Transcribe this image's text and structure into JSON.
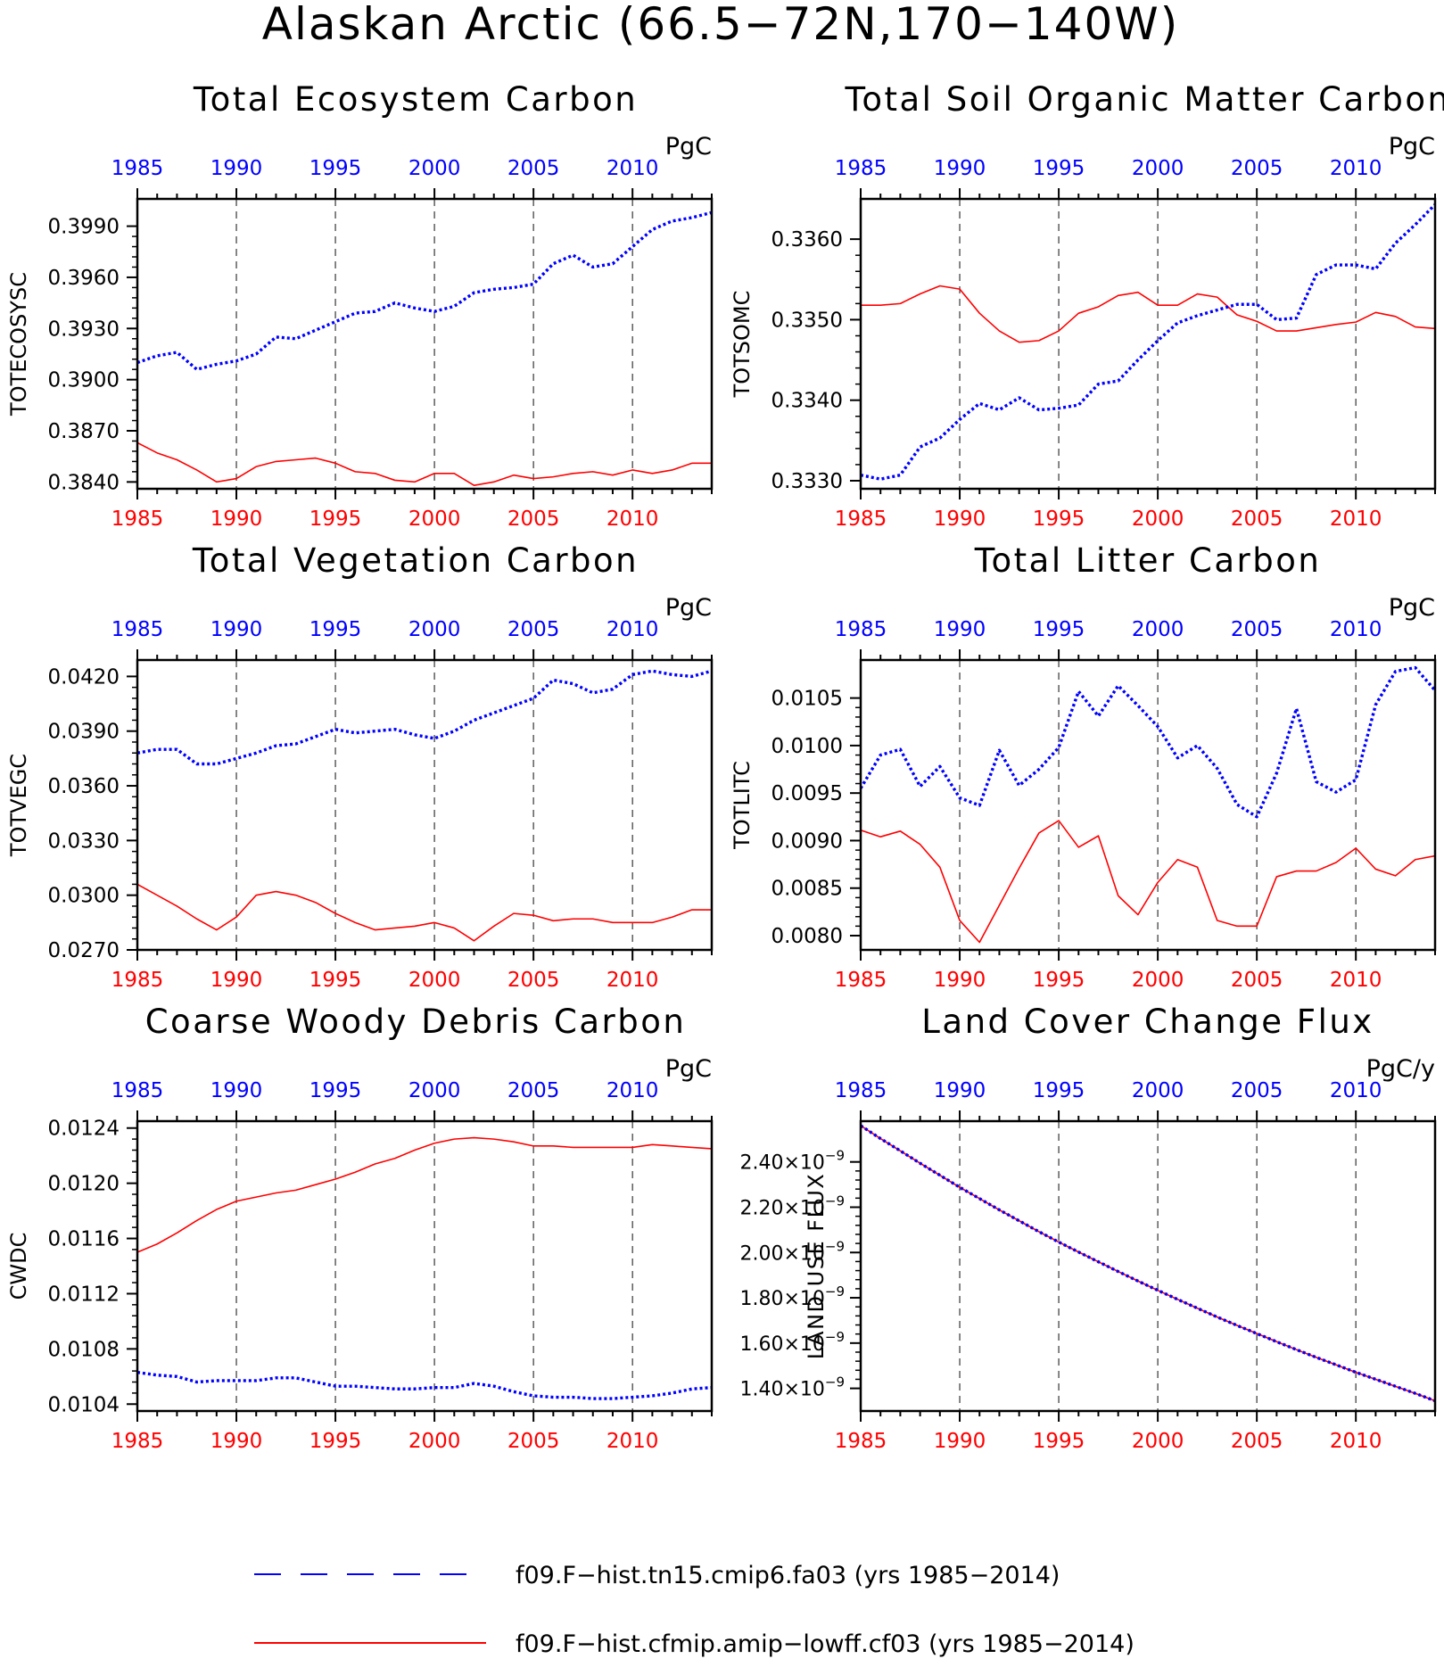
{
  "title": "Alaskan Arctic (66.5−72N,170−140W)",
  "colors": {
    "case_a": "#0000ff",
    "case_b": "#ff0000",
    "axis": "#000000",
    "grid": "#444444"
  },
  "legend": [
    {
      "label": "f09.F−hist.tn15.cmip6.fa03 (yrs 1985−2014)",
      "color": "#0000ff",
      "style": "dashed"
    },
    {
      "label": "f09.F−hist.cfmip.amip−lowff.cf03 (yrs 1985−2014)",
      "color": "#ff0000",
      "style": "solid"
    }
  ],
  "chart_data": [
    {
      "type": "line",
      "title": "Total Ecosystem Carbon",
      "ylabel": "TOTECOSYSC",
      "units": "PgC",
      "xlim": [
        1985,
        2014
      ],
      "ylim": [
        0.3836,
        0.4006
      ],
      "yticks": [
        "0.3840",
        "0.3870",
        "0.3900",
        "0.3930",
        "0.3960",
        "0.3990"
      ],
      "ytick_values": [
        0.384,
        0.387,
        0.39,
        0.393,
        0.396,
        0.399
      ],
      "xticks": [
        "1985",
        "1990",
        "1995",
        "2000",
        "2005",
        "2010"
      ],
      "x": [
        1985,
        1986,
        1987,
        1988,
        1989,
        1990,
        1991,
        1992,
        1993,
        1994,
        1995,
        1996,
        1997,
        1998,
        1999,
        2000,
        2001,
        2002,
        2003,
        2004,
        2005,
        2006,
        2007,
        2008,
        2009,
        2010,
        2011,
        2012,
        2013,
        2014
      ],
      "series": [
        {
          "values": [
            0.391,
            0.3914,
            0.3916,
            0.3906,
            0.3909,
            0.3911,
            0.3915,
            0.3925,
            0.3924,
            0.3929,
            0.3934,
            0.3939,
            0.394,
            0.3945,
            0.3942,
            0.394,
            0.3943,
            0.3951,
            0.3953,
            0.3954,
            0.3956,
            0.3968,
            0.3973,
            0.3966,
            0.3968,
            0.3978,
            0.3988,
            0.3993,
            0.3995,
            0.3998
          ]
        },
        {
          "values": [
            0.3863,
            0.3857,
            0.3853,
            0.3847,
            0.384,
            0.3842,
            0.3849,
            0.3852,
            0.3853,
            0.3854,
            0.3851,
            0.3846,
            0.3845,
            0.3841,
            0.384,
            0.3845,
            0.3845,
            0.3838,
            0.384,
            0.3844,
            0.3842,
            0.3843,
            0.3845,
            0.3846,
            0.3844,
            0.3847,
            0.3845,
            0.3847,
            0.3851,
            0.3851
          ]
        }
      ]
    },
    {
      "type": "line",
      "title": "Total Soil Organic Matter Carbon",
      "ylabel": "TOTSOMC",
      "units": "PgC",
      "xlim": [
        1985,
        2014
      ],
      "ylim": [
        0.3329,
        0.3365
      ],
      "yticks": [
        "0.3330",
        "0.3340",
        "0.3350",
        "0.3360"
      ],
      "ytick_values": [
        0.333,
        0.334,
        0.335,
        0.336
      ],
      "xticks": [
        "1985",
        "1990",
        "1995",
        "2000",
        "2005",
        "2010"
      ],
      "x": [
        1985,
        1986,
        1987,
        1988,
        1989,
        1990,
        1991,
        1992,
        1993,
        1994,
        1995,
        1996,
        1997,
        1998,
        1999,
        2000,
        2001,
        2002,
        2003,
        2004,
        2005,
        2006,
        2007,
        2008,
        2009,
        2010,
        2011,
        2012,
        2013,
        2014
      ],
      "series": [
        {
          "values": [
            0.33307,
            0.33302,
            0.33307,
            0.33342,
            0.33353,
            0.33376,
            0.33396,
            0.33388,
            0.33403,
            0.33388,
            0.3339,
            0.33394,
            0.3342,
            0.33424,
            0.3345,
            0.33474,
            0.33496,
            0.33505,
            0.33512,
            0.33519,
            0.33519,
            0.335,
            0.33502,
            0.33556,
            0.33568,
            0.33568,
            0.33563,
            0.33595,
            0.33618,
            0.33643
          ]
        },
        {
          "values": [
            0.33518,
            0.33518,
            0.3352,
            0.33532,
            0.33542,
            0.33538,
            0.33508,
            0.33486,
            0.33472,
            0.33474,
            0.33486,
            0.33508,
            0.33516,
            0.3353,
            0.33534,
            0.33518,
            0.33518,
            0.33532,
            0.33528,
            0.33506,
            0.33498,
            0.33486,
            0.33486,
            0.3349,
            0.33494,
            0.33497,
            0.33509,
            0.33504,
            0.33491,
            0.33489
          ]
        }
      ]
    },
    {
      "type": "line",
      "title": "Total Vegetation Carbon",
      "ylabel": "TOTVEGC",
      "units": "PgC",
      "xlim": [
        1985,
        2014
      ],
      "ylim": [
        0.027,
        0.0429
      ],
      "yticks": [
        "0.0270",
        "0.0300",
        "0.0330",
        "0.0360",
        "0.0390",
        "0.0420"
      ],
      "ytick_values": [
        0.027,
        0.03,
        0.033,
        0.036,
        0.039,
        0.042
      ],
      "xticks": [
        "1985",
        "1990",
        "1995",
        "2000",
        "2005",
        "2010"
      ],
      "x": [
        1985,
        1986,
        1987,
        1988,
        1989,
        1990,
        1991,
        1992,
        1993,
        1994,
        1995,
        1996,
        1997,
        1998,
        1999,
        2000,
        2001,
        2002,
        2003,
        2004,
        2005,
        2006,
        2007,
        2008,
        2009,
        2010,
        2011,
        2012,
        2013,
        2014
      ],
      "series": [
        {
          "values": [
            0.0378,
            0.038,
            0.038,
            0.0372,
            0.0372,
            0.0375,
            0.0378,
            0.0382,
            0.0383,
            0.0387,
            0.0391,
            0.0389,
            0.039,
            0.0391,
            0.0388,
            0.0386,
            0.039,
            0.0396,
            0.04,
            0.0404,
            0.0408,
            0.0418,
            0.0416,
            0.0411,
            0.0413,
            0.0421,
            0.0423,
            0.0421,
            0.042,
            0.0423
          ]
        },
        {
          "values": [
            0.0306,
            0.03,
            0.0294,
            0.0287,
            0.0281,
            0.0288,
            0.03,
            0.0302,
            0.03,
            0.0296,
            0.029,
            0.0285,
            0.0281,
            0.0282,
            0.0283,
            0.0285,
            0.0282,
            0.0275,
            0.0283,
            0.029,
            0.0289,
            0.0286,
            0.0287,
            0.0287,
            0.0285,
            0.0285,
            0.0285,
            0.0288,
            0.0292,
            0.0292
          ]
        }
      ]
    },
    {
      "type": "line",
      "title": "Total Litter Carbon",
      "ylabel": "TOTLITC",
      "units": "PgC",
      "xlim": [
        1985,
        2014
      ],
      "ylim": [
        0.00785,
        0.0109
      ],
      "yticks": [
        "0.0080",
        "0.0085",
        "0.0090",
        "0.0095",
        "0.0100",
        "0.0105"
      ],
      "ytick_values": [
        0.008,
        0.0085,
        0.009,
        0.0095,
        0.01,
        0.0105
      ],
      "xticks": [
        "1985",
        "1990",
        "1995",
        "2000",
        "2005",
        "2010"
      ],
      "x": [
        1985,
        1986,
        1987,
        1988,
        1989,
        1990,
        1991,
        1992,
        1993,
        1994,
        1995,
        1996,
        1997,
        1998,
        1999,
        2000,
        2001,
        2002,
        2003,
        2004,
        2005,
        2006,
        2007,
        2008,
        2009,
        2010,
        2011,
        2012,
        2013,
        2014
      ],
      "series": [
        {
          "values": [
            0.00955,
            0.0099,
            0.00996,
            0.00957,
            0.00978,
            0.00945,
            0.00937,
            0.00995,
            0.00958,
            0.00975,
            0.00998,
            0.01057,
            0.01031,
            0.01063,
            0.01042,
            0.0102,
            0.00987,
            0.01,
            0.00976,
            0.00938,
            0.00925,
            0.00971,
            0.01039,
            0.00962,
            0.00951,
            0.00964,
            0.01043,
            0.01078,
            0.01082,
            0.01058
          ]
        },
        {
          "values": [
            0.00911,
            0.00904,
            0.0091,
            0.00896,
            0.00872,
            0.00816,
            0.00793,
            0.00832,
            0.00871,
            0.00908,
            0.00921,
            0.00893,
            0.00905,
            0.00842,
            0.00822,
            0.00856,
            0.0088,
            0.00872,
            0.00816,
            0.0081,
            0.0081,
            0.00862,
            0.00868,
            0.00868,
            0.00877,
            0.00892,
            0.0087,
            0.00863,
            0.0088,
            0.00884
          ]
        }
      ]
    },
    {
      "type": "line",
      "title": "Coarse Woody Debris Carbon",
      "ylabel": "CWDC",
      "units": "PgC",
      "xlim": [
        1985,
        2014
      ],
      "ylim": [
        0.01035,
        0.01245
      ],
      "yticks": [
        "0.0104",
        "0.0108",
        "0.0112",
        "0.0116",
        "0.0120",
        "0.0124"
      ],
      "ytick_values": [
        0.0104,
        0.0108,
        0.0112,
        0.0116,
        0.012,
        0.0124
      ],
      "xticks": [
        "1985",
        "1990",
        "1995",
        "2000",
        "2005",
        "2010"
      ],
      "x": [
        1985,
        1986,
        1987,
        1988,
        1989,
        1990,
        1991,
        1992,
        1993,
        1994,
        1995,
        1996,
        1997,
        1998,
        1999,
        2000,
        2001,
        2002,
        2003,
        2004,
        2005,
        2006,
        2007,
        2008,
        2009,
        2010,
        2011,
        2012,
        2013,
        2014
      ],
      "series": [
        {
          "values": [
            0.01063,
            0.01061,
            0.0106,
            0.01056,
            0.01057,
            0.01057,
            0.01057,
            0.01059,
            0.01059,
            0.01056,
            0.01053,
            0.01053,
            0.01052,
            0.01051,
            0.01051,
            0.01052,
            0.01052,
            0.01055,
            0.01053,
            0.01049,
            0.01046,
            0.01045,
            0.01045,
            0.01044,
            0.01044,
            0.01045,
            0.01046,
            0.01048,
            0.01051,
            0.01052
          ]
        },
        {
          "values": [
            0.0115,
            0.01156,
            0.01164,
            0.01173,
            0.01181,
            0.01187,
            0.0119,
            0.01193,
            0.01195,
            0.01199,
            0.01203,
            0.01208,
            0.01214,
            0.01218,
            0.01224,
            0.01229,
            0.01232,
            0.01233,
            0.01232,
            0.0123,
            0.01227,
            0.01227,
            0.01226,
            0.01226,
            0.01226,
            0.01226,
            0.01228,
            0.01227,
            0.01226,
            0.01225
          ]
        }
      ]
    },
    {
      "type": "line",
      "title": "Land Cover Change Flux",
      "ylabel": "LAND_USE_FLUX",
      "units": "PgC/y",
      "xlim": [
        1985,
        2014
      ],
      "ylim": [
        1.3e-09,
        2.58e-09
      ],
      "yticks": [
        "1.40×10⁻⁹",
        "1.60×10⁻⁹",
        "1.80×10⁻⁹",
        "2.00×10⁻⁹",
        "2.20×10⁻⁹",
        "2.40×10⁻⁹"
      ],
      "ytick_values": [
        1.4e-09,
        1.6e-09,
        1.8e-09,
        2e-09,
        2.2e-09,
        2.4e-09
      ],
      "xticks": [
        "1985",
        "1990",
        "1995",
        "2000",
        "2005",
        "2010"
      ],
      "x": [
        1985,
        1986,
        1987,
        1988,
        1989,
        1990,
        1991,
        1992,
        1993,
        1994,
        1995,
        1996,
        1997,
        1998,
        1999,
        2000,
        2001,
        2002,
        2003,
        2004,
        2005,
        2006,
        2007,
        2008,
        2009,
        2010,
        2011,
        2012,
        2013,
        2014
      ],
      "series": [
        {
          "values": [
            2.56e-09,
            2.503e-09,
            2.449e-09,
            2.394e-09,
            2.341e-09,
            2.288e-09,
            2.238e-09,
            2.188e-09,
            2.14e-09,
            2.092e-09,
            2.046e-09,
            2.002e-09,
            1.959e-09,
            1.916e-09,
            1.874e-09,
            1.833e-09,
            1.793e-09,
            1.754e-09,
            1.715e-09,
            1.678e-09,
            1.642e-09,
            1.606e-09,
            1.571e-09,
            1.537e-09,
            1.504e-09,
            1.471e-09,
            1.44e-09,
            1.409e-09,
            1.378e-09,
            1.345e-09
          ]
        },
        {
          "values": [
            2.56e-09,
            2.503e-09,
            2.449e-09,
            2.394e-09,
            2.341e-09,
            2.288e-09,
            2.238e-09,
            2.188e-09,
            2.14e-09,
            2.092e-09,
            2.046e-09,
            2.002e-09,
            1.959e-09,
            1.916e-09,
            1.874e-09,
            1.833e-09,
            1.793e-09,
            1.754e-09,
            1.715e-09,
            1.678e-09,
            1.642e-09,
            1.606e-09,
            1.571e-09,
            1.537e-09,
            1.504e-09,
            1.471e-09,
            1.44e-09,
            1.409e-09,
            1.378e-09,
            1.345e-09
          ]
        }
      ]
    }
  ]
}
